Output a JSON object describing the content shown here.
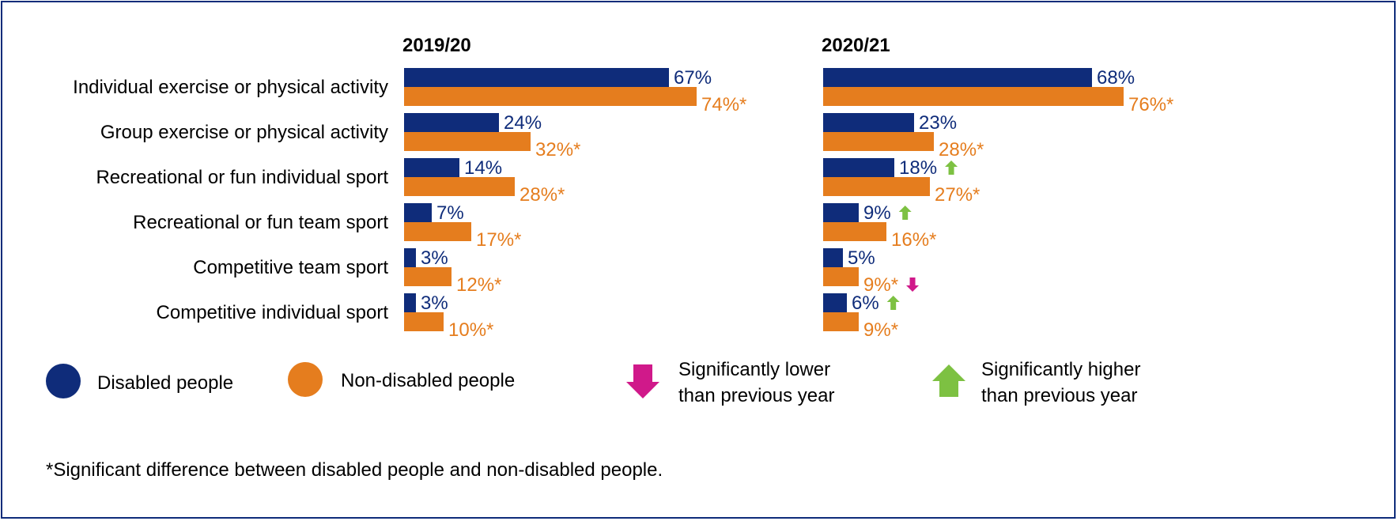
{
  "colors": {
    "disabled": "#0f2c7a",
    "non_disabled": "#e57d1e",
    "arrow_up": "#7dc142",
    "arrow_down": "#d0198a",
    "border": "#0f2c7a"
  },
  "chart_data": {
    "type": "bar",
    "orientation": "horizontal",
    "categories": [
      "Individual exercise or physical activity",
      "Group exercise or physical activity",
      "Recreational or fun individual sport",
      "Recreational or fun team sport",
      "Competitive team sport",
      "Competitive individual sport"
    ],
    "panels": [
      {
        "title": "2019/20",
        "series": [
          {
            "name": "Disabled people",
            "values": [
              67,
              24,
              14,
              7,
              3,
              3
            ],
            "labels": [
              "67%",
              "24%",
              "14%",
              "7%",
              "3%",
              "3%"
            ],
            "arrows": [
              "",
              "",
              "",
              "",
              "",
              ""
            ]
          },
          {
            "name": "Non-disabled people",
            "values": [
              74,
              32,
              28,
              17,
              12,
              10
            ],
            "labels": [
              "74%*",
              "32%*",
              "28%*",
              "17%*",
              "12%*",
              "10%*"
            ],
            "arrows": [
              "",
              "",
              "",
              "",
              "",
              ""
            ]
          }
        ]
      },
      {
        "title": "2020/21",
        "series": [
          {
            "name": "Disabled people",
            "values": [
              68,
              23,
              18,
              9,
              5,
              6
            ],
            "labels": [
              "68%",
              "23%",
              "18%",
              "9%",
              "5%",
              "6%"
            ],
            "arrows": [
              "",
              "",
              "up",
              "up",
              "",
              "up"
            ]
          },
          {
            "name": "Non-disabled people",
            "values": [
              76,
              28,
              27,
              16,
              9,
              9
            ],
            "labels": [
              "76%*",
              "28%*",
              "27%*",
              "16%*",
              "9%*",
              "9%*"
            ],
            "arrows": [
              "",
              "",
              "",
              "",
              "down",
              ""
            ]
          }
        ]
      }
    ],
    "xlim": [
      0,
      100
    ],
    "grid": false,
    "legend": {
      "items": [
        {
          "label": "Disabled people",
          "marker": "circle",
          "color": "#0f2c7a"
        },
        {
          "label": "Non-disabled people",
          "marker": "circle",
          "color": "#e57d1e"
        },
        {
          "label_lines": [
            "Significantly lower",
            "than previous year"
          ],
          "marker": "arrow-down",
          "color": "#d0198a"
        },
        {
          "label_lines": [
            "Significantly higher",
            "than previous year"
          ],
          "marker": "arrow-up",
          "color": "#7dc142"
        }
      ],
      "placement": "bottom"
    }
  },
  "footnote": "*Significant difference between disabled people and non-disabled people."
}
